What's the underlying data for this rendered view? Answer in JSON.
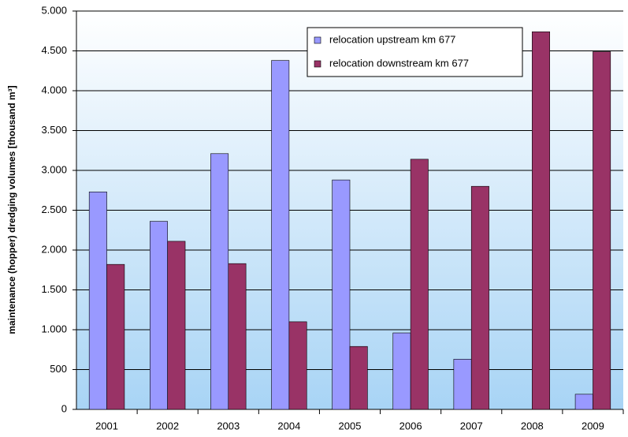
{
  "chart_data": {
    "type": "bar",
    "y_label": "maintenance (hopper) dredging volumes [thousand m³]",
    "categories": [
      "2001",
      "2002",
      "2003",
      "2004",
      "2005",
      "2006",
      "2007",
      "2008",
      "2009"
    ],
    "series": [
      {
        "name": "relocation upstream km 677",
        "color": "#9999ff",
        "values": [
          2730,
          2360,
          3210,
          4380,
          2880,
          960,
          630,
          null,
          190
        ]
      },
      {
        "name": "relocation downstream km 677",
        "color": "#993366",
        "values": [
          1820,
          2110,
          1830,
          1100,
          790,
          3140,
          2800,
          4740,
          4490
        ]
      }
    ],
    "ylim": [
      0,
      5000
    ],
    "yticks": [
      0,
      500,
      {
        "value": 1000,
        "label": "1.000"
      },
      {
        "value": 1500,
        "label": "1.500"
      },
      {
        "value": 2000,
        "label": "2.000"
      },
      {
        "value": 2500,
        "label": "2.500"
      },
      {
        "value": 3000,
        "label": "3.000"
      },
      {
        "value": 3500,
        "label": "3.500"
      },
      {
        "value": 4000,
        "label": "4.000"
      },
      {
        "value": 4500,
        "label": "4.500"
      },
      {
        "value": 5000,
        "label": "5.000"
      }
    ],
    "grid": true,
    "legend": "top-right"
  }
}
